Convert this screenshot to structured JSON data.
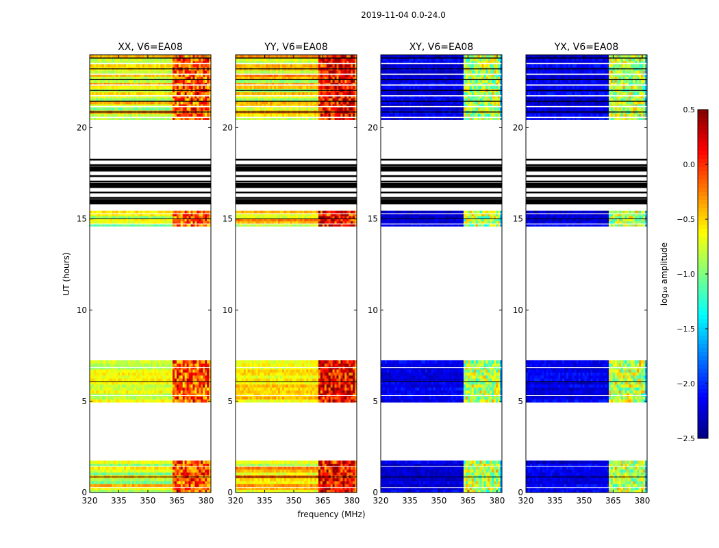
{
  "chart_data": {
    "type": "heatmap",
    "title": "2019-11-04 0.0-24.0",
    "xlabel": "frequency (MHz)",
    "ylabel": "UT (hours)",
    "xlim": [
      320,
      382.5
    ],
    "ylim": [
      0,
      24
    ],
    "xticks": [
      320,
      335,
      350,
      365,
      380
    ],
    "yticks": [
      0,
      5,
      10,
      15,
      20
    ],
    "panels": [
      {
        "title": "XX, V6=EA08",
        "kind": "parallel",
        "base_level": -0.72,
        "rfi_level": -0.12,
        "mid_level": -0.4
      },
      {
        "title": "YY, V6=EA08",
        "kind": "parallel",
        "base_level": -0.55,
        "rfi_level": 0.12,
        "mid_level": -0.28
      },
      {
        "title": "XY, V6=EA08",
        "kind": "cross",
        "base_level": -2.2,
        "rfi_level": -0.85,
        "mid_level": -1.6
      },
      {
        "title": "YX, V6=EA08",
        "kind": "cross",
        "base_level": -2.2,
        "rfi_level": -0.85,
        "mid_level": -1.6
      }
    ],
    "data_ranges_hours": [
      [
        0.0,
        1.75
      ],
      [
        4.95,
        7.25
      ],
      [
        14.6,
        15.45
      ],
      [
        20.45,
        24.0
      ]
    ],
    "flagged_ranges_hours": [
      [
        15.8,
        18.5
      ]
    ],
    "rfi_band_mhz": [
      363,
      381
    ],
    "colorbar": {
      "label": "log₁₀ amplitude",
      "min": -2.5,
      "max": 0.5,
      "ticks": [
        0.5,
        0.0,
        -0.5,
        -1.0,
        -1.5,
        -2.0,
        -2.5
      ],
      "tick_labels": [
        "0.5",
        "0.0",
        "−0.5",
        "−1.0",
        "−1.5",
        "−2.0",
        "−2.5"
      ],
      "colormap": "jet"
    }
  }
}
